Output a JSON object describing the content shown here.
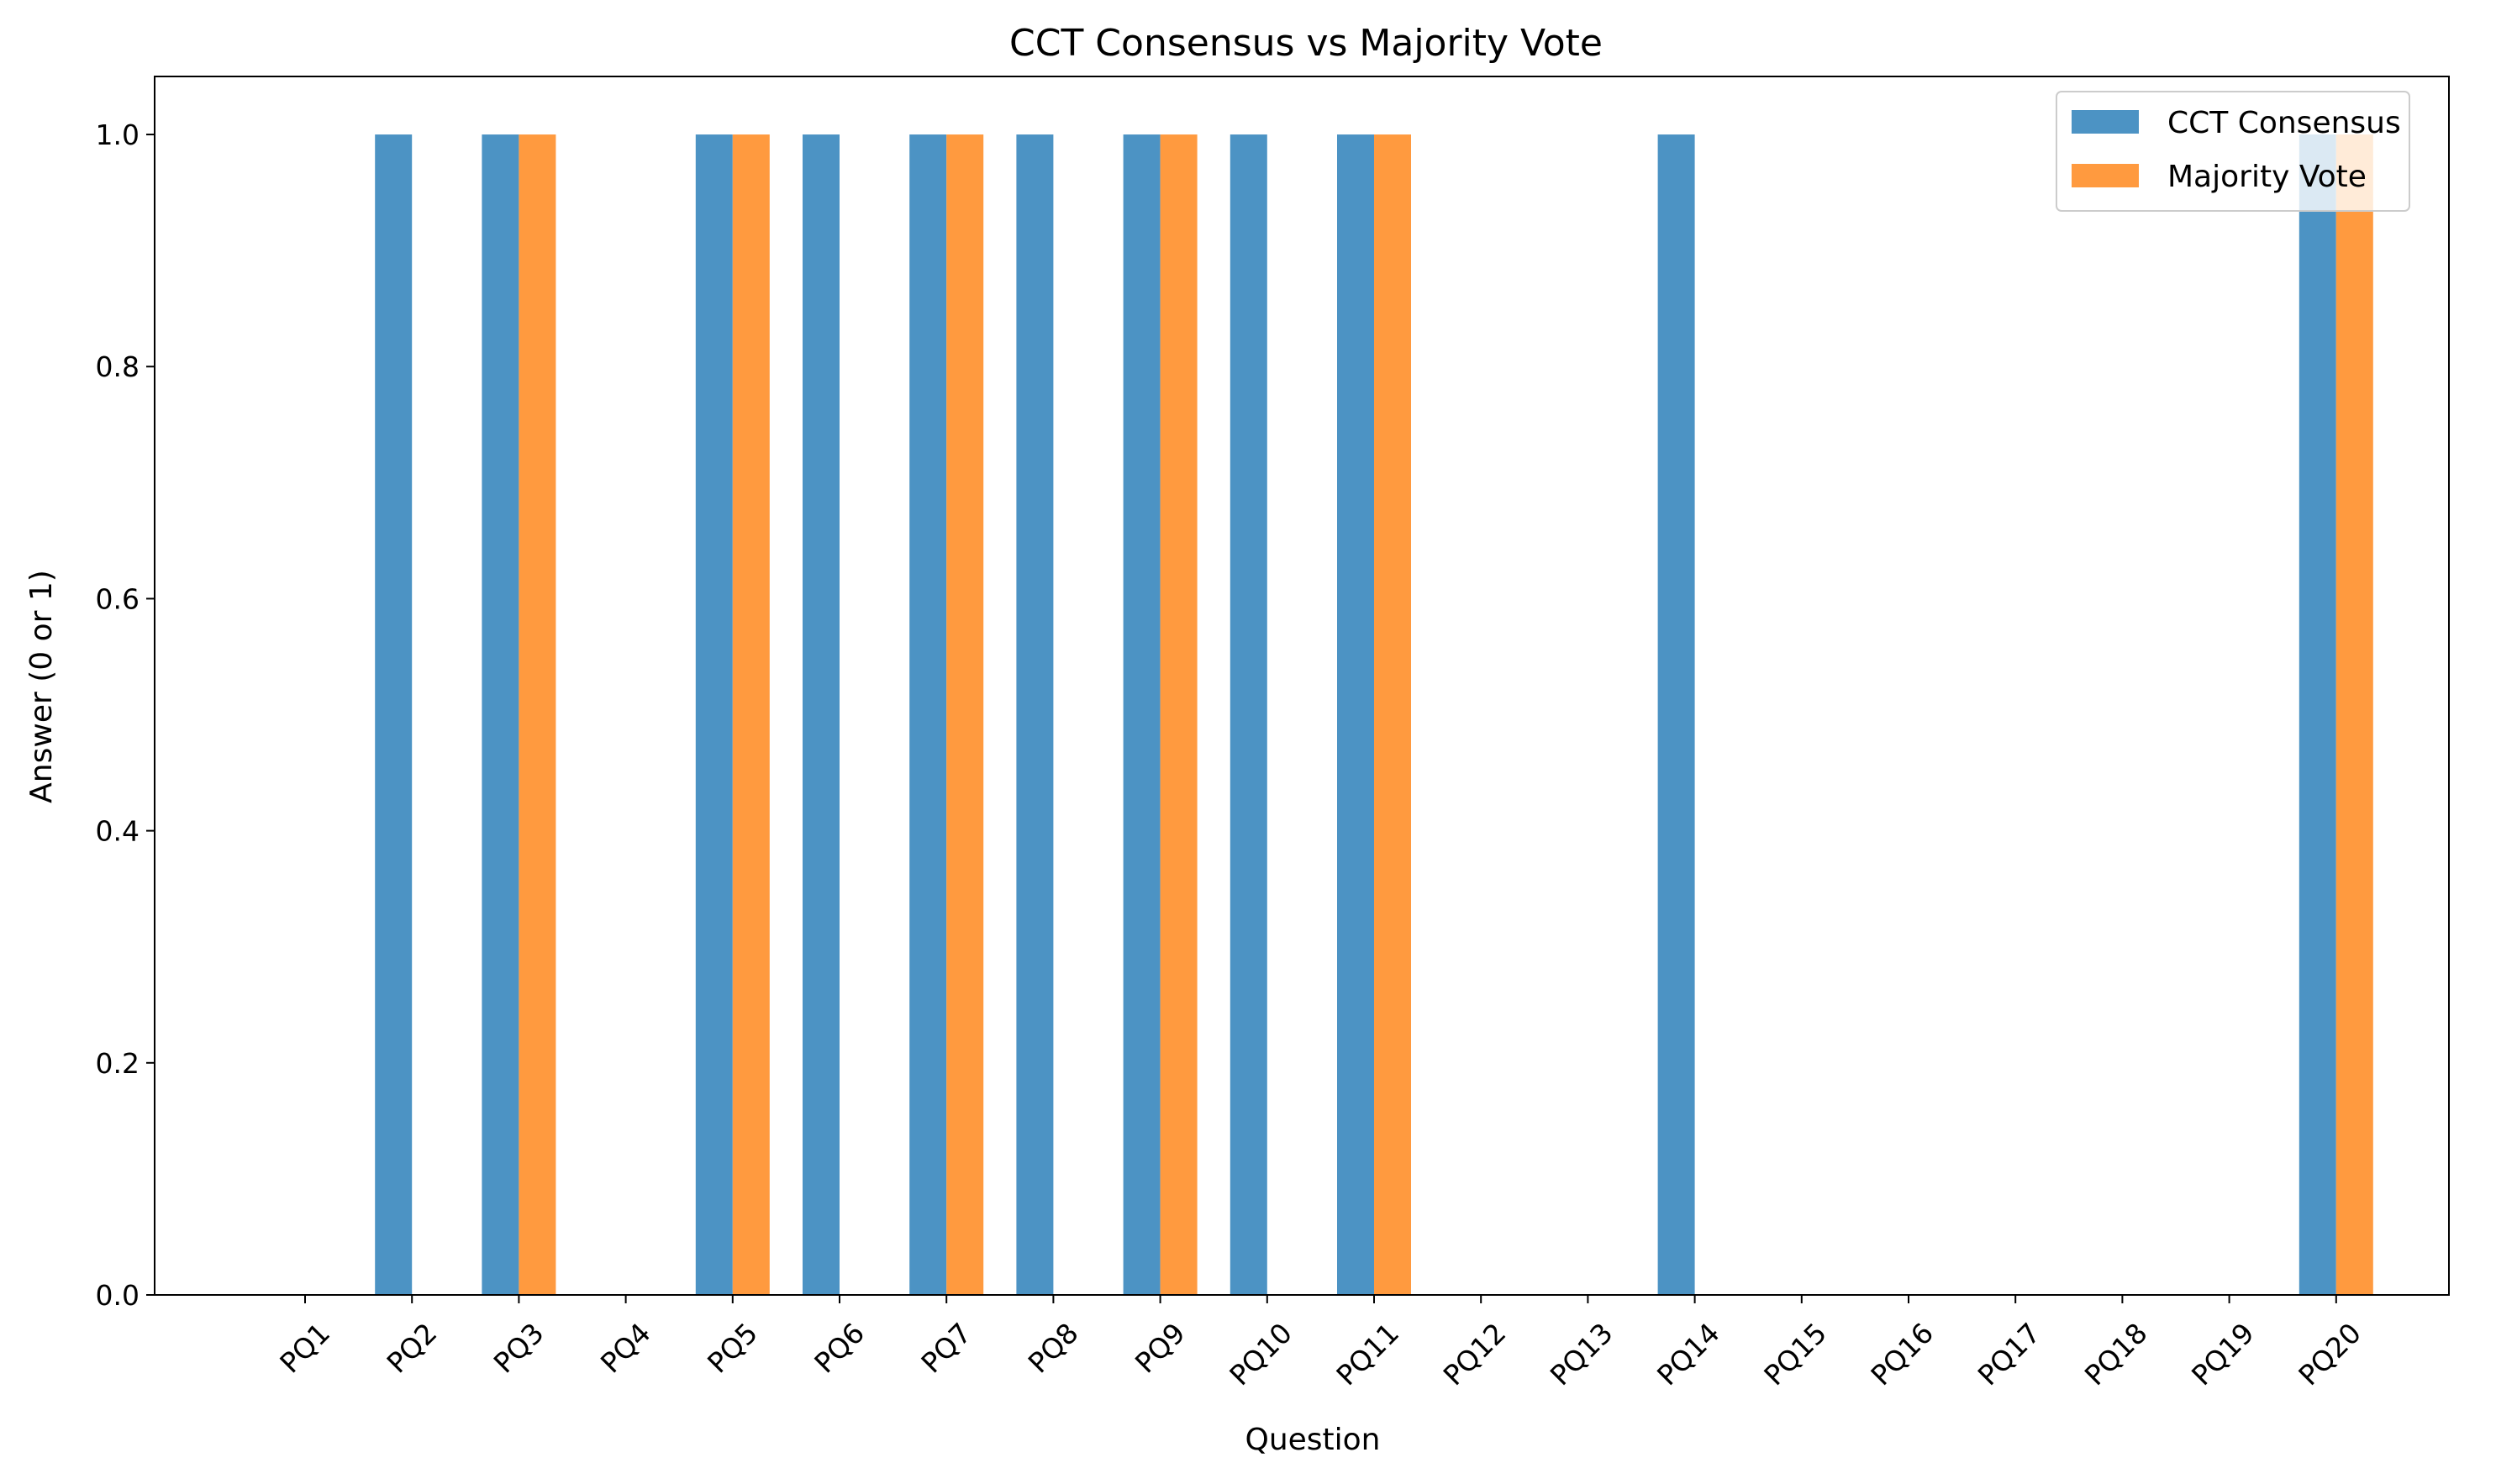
{
  "chart_data": {
    "type": "bar",
    "title": "CCT Consensus vs Majority Vote",
    "xlabel": "Question",
    "ylabel": "Answer (0 or 1)",
    "categories": [
      "PQ1",
      "PQ2",
      "PQ3",
      "PQ4",
      "PQ5",
      "PQ6",
      "PQ7",
      "PQ8",
      "PQ9",
      "PQ10",
      "PQ11",
      "PQ12",
      "PQ13",
      "PQ14",
      "PQ15",
      "PQ16",
      "PQ17",
      "PQ18",
      "PQ19",
      "PQ20"
    ],
    "series": [
      {
        "name": "CCT Consensus",
        "color": "#4c93c4",
        "values": [
          0,
          1,
          1,
          0,
          1,
          1,
          1,
          1,
          1,
          1,
          1,
          0,
          0,
          1,
          0,
          0,
          0,
          0,
          0,
          1
        ]
      },
      {
        "name": "Majority Vote",
        "color": "#ff9a3f",
        "values": [
          0,
          0,
          1,
          0,
          1,
          0,
          1,
          0,
          1,
          0,
          1,
          0,
          0,
          0,
          0,
          0,
          0,
          0,
          0,
          1
        ]
      }
    ],
    "ylim": [
      0,
      1.05
    ],
    "yticks": [
      0.0,
      0.2,
      0.4,
      0.6,
      0.8,
      1.0
    ],
    "ytick_labels": [
      "0.0",
      "0.2",
      "0.4",
      "0.6",
      "0.8",
      "1.0"
    ],
    "xtick_rotation": 45,
    "grid": false,
    "legend_position": "top-right"
  }
}
